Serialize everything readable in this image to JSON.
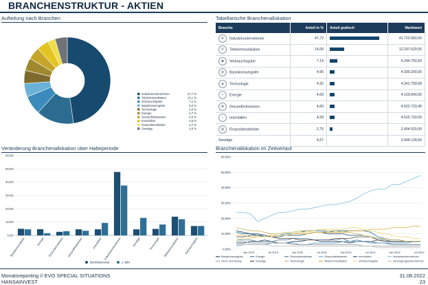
{
  "page": {
    "title": "BRANCHENSTRUKTUR - AKTIEN",
    "footer_left_1": "Monatsreporting // EVO SPECIAL SITUATIONS",
    "footer_left_2": "HANSAINVEST",
    "footer_date": "31.08.2022",
    "footer_page": "23"
  },
  "colors": {
    "navy": "#1d3b5a",
    "bar": "#14456b"
  },
  "chart_data": [
    {
      "id": "pie",
      "type": "pie",
      "title": "Aufteilung nach Branchen",
      "slices": [
        {
          "name": "Industrieunternehmen",
          "label": "47,7 %",
          "value": 47.7,
          "color": "#174a6f"
        },
        {
          "name": "Telekommunikation",
          "label": "14,1 %",
          "value": 14.1,
          "color": "#2b6c90"
        },
        {
          "name": "Verbrauchsgüter",
          "label": "7,1 %",
          "value": 7.1,
          "color": "#3c8bbd"
        },
        {
          "name": "Basiskonsumgüter",
          "label": "5,0 %",
          "value": 5.0,
          "color": "#6ab1d6"
        },
        {
          "name": "Technologie",
          "label": "4,9 %",
          "value": 4.9,
          "color": "#7f6a2e"
        },
        {
          "name": "Energie",
          "label": "4,7 %",
          "value": 4.7,
          "color": "#a1892f"
        },
        {
          "name": "Gesundheitswesen",
          "label": "4,6 %",
          "value": 4.6,
          "color": "#c5a52a"
        },
        {
          "name": "Immobilien",
          "label": "4,6 %",
          "value": 4.6,
          "color": "#e2c521"
        },
        {
          "name": "Finanzdienstleister",
          "label": "2,7 %",
          "value": 2.7,
          "color": "#f1dc4a"
        },
        {
          "name": "Sonstige",
          "label": "4,6 %",
          "value": 4.6,
          "color": "#6f7378"
        }
      ]
    },
    {
      "id": "table",
      "type": "table",
      "title": "Tabellarische Branchenallokation",
      "columns": [
        "Branche",
        "Anteil in %",
        "Anteil grafisch",
        "Marktwert"
      ],
      "rows": [
        {
          "icon": "factory-icon",
          "glyph": "⚙",
          "name": "Industrieunternehmen",
          "pct": "47,72",
          "value": 47.72,
          "mv": "41.723.583,00"
        },
        {
          "icon": "antenna-icon",
          "glyph": "✆",
          "name": "Telekommunikation",
          "pct": "14,06",
          "value": 14.06,
          "mv": "12.297.629,50"
        },
        {
          "icon": "car-icon",
          "glyph": "◉",
          "name": "Verbrauchsgüter",
          "pct": "7,14",
          "value": 7.14,
          "mv": "6.244.750,50"
        },
        {
          "icon": "cart-icon",
          "glyph": "◍",
          "name": "Basiskonsumgüter",
          "pct": "4,95",
          "value": 4.95,
          "mv": "4.330.200,00"
        },
        {
          "icon": "chip-icon",
          "glyph": "◈",
          "name": "Technologie",
          "pct": "4,92",
          "value": 4.92,
          "mv": "4.301.759,68"
        },
        {
          "icon": "energy-icon",
          "glyph": "⚡",
          "name": "Energie",
          "pct": "4,69",
          "value": 4.69,
          "mv": "4.103.840,00"
        },
        {
          "icon": "health-icon",
          "glyph": "✚",
          "name": "Gesundheitswesen",
          "pct": "4,60",
          "value": 4.6,
          "mv": "4.022.723,40"
        },
        {
          "icon": "house-icon",
          "glyph": "⌂",
          "name": "Immobilien",
          "pct": "4,59",
          "value": 4.59,
          "mv": "4.015.720,00"
        },
        {
          "icon": "bank-icon",
          "glyph": "▥",
          "name": "Finanzdienstleister",
          "pct": "2,75",
          "value": 2.75,
          "mv": "2.404.520,00"
        },
        {
          "icon": "",
          "glyph": "",
          "name": "Sonstige",
          "pct": "4,57",
          "value": 4.57,
          "mv": "3.999.139,60"
        }
      ]
    },
    {
      "id": "bars",
      "type": "bar",
      "title": "Veränderung Branchenallokation über Halteperiode",
      "ylim": [
        0,
        60
      ],
      "yticks": [
        "0,0%",
        "10,0%",
        "20,0%",
        "30,0%",
        "40,0%",
        "50,0%",
        "60,0%"
      ],
      "categories": [
        "Basiskonsumgüter",
        "Energie",
        "Finanzdienstleister",
        "Gesundheitswesen",
        "Immobilien",
        "Industrieunternehmen",
        "Sonstige",
        "Technologie",
        "Telekommunikation",
        "Verbrauchsgüter"
      ],
      "series": [
        {
          "name": "Berichtsmonat",
          "color": "#1d4e73",
          "values": [
            5.0,
            4.7,
            2.7,
            4.6,
            4.6,
            47.7,
            4.6,
            4.9,
            14.1,
            7.1
          ]
        },
        {
          "name": "1 Jahr",
          "color": "#2f6f95",
          "values": [
            4.6,
            1.7,
            3.2,
            3.5,
            9.4,
            37.5,
            13.2,
            8.2,
            12.2,
            7.1
          ]
        }
      ]
    },
    {
      "id": "lines",
      "type": "line",
      "title": "Branchenallokation im Zeitverlauf",
      "ylim": [
        0,
        60
      ],
      "yticks": [
        "0,00%",
        "10,00%",
        "20,00%",
        "30,00%",
        "40,00%",
        "50,00%",
        "60,00%"
      ],
      "xticks": [
        "Jan 2019",
        "Jul 2019",
        "Jan 2020",
        "Jul 2020",
        "Jan 2021",
        "Jul 2021",
        "Jan 2022",
        "Jul 2022"
      ],
      "series": [
        {
          "name": "Basiskonsumgüter",
          "color": "#1d3b5a",
          "values": [
            4,
            4,
            5,
            5,
            6,
            5,
            4,
            4,
            5,
            5,
            6,
            6,
            5,
            5,
            5,
            5,
            4,
            5,
            5,
            5,
            6,
            6,
            5,
            5,
            5,
            5,
            5
          ]
        },
        {
          "name": "Energie",
          "color": "#2a6a8c",
          "values": [
            11,
            10,
            10,
            9,
            9,
            8,
            9,
            10,
            10,
            11,
            12,
            12,
            12,
            11,
            12,
            12,
            12,
            12,
            12,
            11,
            8,
            7,
            6,
            6,
            5,
            5,
            5
          ]
        },
        {
          "name": "Finanzdienstleister",
          "color": "#4a6f8e",
          "values": [
            6,
            6,
            6,
            5,
            5,
            5,
            6,
            6,
            7,
            7,
            7,
            6,
            6,
            6,
            6,
            7,
            5,
            6,
            5,
            5,
            4,
            4,
            3,
            3,
            3,
            3,
            3
          ]
        },
        {
          "name": "Gesundheitswesen",
          "color": "#5a96c4",
          "values": [
            2,
            3,
            3,
            3,
            3,
            4,
            4,
            4,
            4,
            3,
            3,
            4,
            4,
            4,
            4,
            5,
            5,
            5,
            5,
            4,
            4,
            4,
            4,
            4,
            4,
            5,
            5
          ]
        },
        {
          "name": "Immobilien",
          "color": "#1b4a6b",
          "values": [
            12,
            11,
            10,
            10,
            9,
            8,
            8,
            9,
            9,
            9,
            10,
            11,
            11,
            10,
            10,
            10,
            9,
            9,
            9,
            8,
            7,
            7,
            6,
            6,
            5,
            5,
            5
          ]
        },
        {
          "name": "Industrieunternehmen",
          "color": "#7fbcd9",
          "values": [
            24,
            24,
            23,
            18,
            20,
            22,
            24,
            24,
            25,
            26,
            26,
            27,
            28,
            29,
            29,
            30,
            31,
            33,
            36,
            38,
            39,
            39,
            42,
            42,
            44,
            46,
            48
          ]
        },
        {
          "name": "Ohne Zuordnung",
          "color": "#9a9a9a",
          "values": [
            5,
            5,
            4,
            4,
            4,
            4,
            4,
            4,
            3,
            3,
            3,
            3,
            3,
            3,
            3,
            3,
            3,
            3,
            2,
            2,
            2,
            2,
            2,
            2,
            2,
            2,
            2
          ]
        },
        {
          "name": "Sonstige",
          "color": "#444444",
          "values": [
            8,
            8,
            9,
            9,
            8,
            8,
            7,
            7,
            7,
            6,
            6,
            6,
            6,
            6,
            7,
            7,
            7,
            8,
            8,
            8,
            6,
            5,
            5,
            5,
            5,
            5,
            5
          ]
        },
        {
          "name": "Technologie",
          "color": "#c8b65a",
          "values": [
            14,
            13,
            12,
            12,
            11,
            10,
            10,
            11,
            11,
            12,
            12,
            12,
            13,
            12,
            12,
            11,
            11,
            10,
            9,
            8,
            7,
            7,
            6,
            6,
            5,
            5,
            5
          ]
        },
        {
          "name": "Telekommunikation",
          "color": "#d9a637",
          "values": [
            9,
            9,
            8,
            8,
            8,
            9,
            9,
            9,
            10,
            10,
            10,
            11,
            11,
            11,
            11,
            11,
            12,
            12,
            12,
            13,
            13,
            13,
            14,
            14,
            14,
            15,
            15
          ]
        },
        {
          "name": "Verbrauchsgüter",
          "color": "#e8d476",
          "values": [
            6,
            7,
            7,
            8,
            8,
            8,
            9,
            9,
            10,
            11,
            11,
            12,
            13,
            13,
            13,
            13,
            14,
            14,
            13,
            12,
            11,
            10,
            9,
            8,
            8,
            7,
            7
          ]
        },
        {
          "name": "Versorgungsunternehmen",
          "color": "#b9b9b9",
          "values": [
            3,
            3,
            3,
            3,
            3,
            2,
            2,
            2,
            2,
            2,
            2,
            2,
            2,
            2,
            2,
            2,
            2,
            2,
            2,
            2,
            1,
            1,
            1,
            1,
            1,
            1,
            1
          ]
        }
      ]
    }
  ]
}
